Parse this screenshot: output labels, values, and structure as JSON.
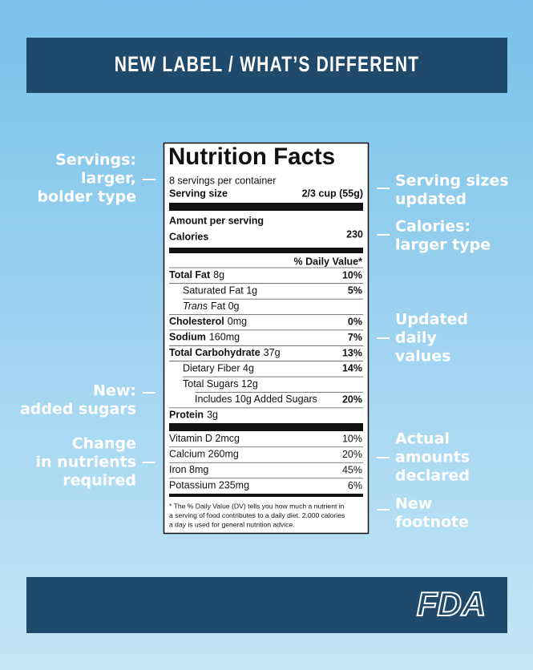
{
  "header": {
    "title": "NEW LABEL / WHAT’S DIFFERENT"
  },
  "label": {
    "title": "Nutrition Facts",
    "servings": "8 servings per container",
    "serving_size_label": "Serving size",
    "serving_size": "2/3 cup (55g)",
    "amount_per_serving": "Amount per serving",
    "calories_label": "Calories",
    "calories": "230",
    "dv_header": "% Daily Value*",
    "nutrients": [
      {
        "bold": "Total Fat",
        "text": "8g",
        "dv": "10%"
      },
      {
        "text": "Saturated Fat 1g",
        "dv": "5%"
      },
      {
        "italic": "Trans",
        "text": "Fat 0g"
      },
      {
        "bold": "Cholesterol",
        "text": "0mg",
        "dv": "0%"
      },
      {
        "bold": "Sodium",
        "text": "160mg",
        "dv": "7%"
      },
      {
        "bold": "Total Carbohydrate",
        "text": "37g",
        "dv": "13%"
      },
      {
        "text": "Dietary Fiber 4g",
        "dv": "14%"
      },
      {
        "text": "Total Sugars 12g"
      },
      {
        "text": "Includes 10g Added Sugars",
        "dv": "20%"
      },
      {
        "bold": "Protein",
        "text": "3g"
      }
    ],
    "vitamins": [
      {
        "text": "Vitamin D 2mcg",
        "dv": "10%"
      },
      {
        "text": "Calcium 260mg",
        "dv": "20%"
      },
      {
        "text": "Iron 8mg",
        "dv": "45%"
      },
      {
        "text": "Potassium 235mg",
        "dv": "6%"
      }
    ],
    "footnote": [
      "* The % Daily Value (DV) tells you how much a nutrient in",
      "a serving of food contributes to a daily diet. 2,000 calories",
      "a day is used for general nutrition advice."
    ]
  },
  "annotations": {
    "left": [
      {
        "lines": [
          "Servings:",
          "larger,",
          "bolder type"
        ]
      },
      {
        "lines": [
          "New:",
          "added sugars"
        ]
      },
      {
        "lines": [
          "Change",
          "in nutrients",
          "required"
        ]
      }
    ],
    "right": [
      {
        "lines": [
          "Serving sizes",
          "updated"
        ]
      },
      {
        "lines": [
          "Calories:",
          "larger type"
        ]
      },
      {
        "lines": [
          "Updated",
          "daily",
          "values"
        ]
      },
      {
        "lines": [
          "Actual",
          "amounts",
          "declared"
        ]
      },
      {
        "lines": [
          "New",
          "footnote"
        ]
      }
    ]
  },
  "footer": {
    "logo": "FDA"
  }
}
